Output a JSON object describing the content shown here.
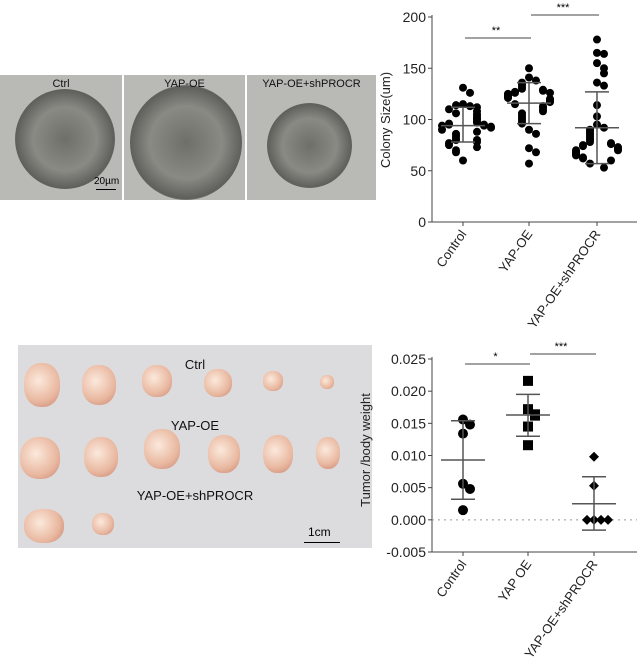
{
  "photos_top": {
    "labels": [
      "Ctrl",
      "YAP-OE",
      "YAP-OE+shPROCR"
    ],
    "scale_bar": "20µm"
  },
  "photos_bottom": {
    "labels": [
      "Ctrl",
      "YAP-OE",
      "YAP-OE+shPROCR"
    ],
    "scale_bar": "1cm"
  },
  "chart_data": [
    {
      "type": "scatter",
      "ylabel": "Colony Size(um)",
      "categories": [
        "Control",
        "YAP-OE",
        "YAP-OE+shPROCR"
      ],
      "ylim": [
        0,
        200
      ],
      "yticks": [
        0,
        50,
        100,
        150,
        200
      ],
      "series": [
        {
          "values": [
            131,
            126,
            115,
            113,
            114,
            112,
            110,
            108,
            106,
            105,
            103,
            101,
            100,
            98,
            97,
            96,
            95,
            95,
            94,
            94,
            93,
            92,
            90,
            88,
            86,
            84,
            82,
            80,
            80,
            78,
            77,
            75,
            73,
            70,
            68,
            60
          ],
          "mean": 94,
          "sd_low": 78,
          "sd_high": 112
        },
        {
          "values": [
            150,
            141,
            138,
            136,
            134,
            132,
            130,
            129,
            128,
            127,
            126,
            126,
            125,
            124,
            123,
            122,
            121,
            120,
            119,
            118,
            117,
            115,
            113,
            112,
            110,
            108,
            106,
            104,
            102,
            100,
            98,
            96,
            90,
            86,
            72,
            68,
            57
          ],
          "mean": 116,
          "sd_low": 96,
          "sd_high": 136
        },
        {
          "values": [
            178,
            165,
            164,
            155,
            150,
            145,
            136,
            133,
            114,
            103,
            95,
            92,
            90,
            88,
            86,
            84,
            82,
            80,
            78,
            77,
            76,
            75,
            74,
            73,
            72,
            71,
            70,
            70,
            69,
            68,
            67,
            66,
            65,
            63,
            62,
            60,
            57,
            53
          ],
          "mean": 92,
          "sd_low": 57,
          "sd_high": 127
        }
      ],
      "significance": [
        {
          "from": 0,
          "to": 1,
          "label": "**"
        },
        {
          "from": 1,
          "to": 2,
          "label": "***"
        }
      ]
    },
    {
      "type": "scatter",
      "ylabel": "Tumor /body  weight",
      "categories": [
        "Control",
        "YAP OE",
        "YAP-OE+shPROCR"
      ],
      "ylim": [
        -0.005,
        0.025
      ],
      "yticks": [
        "-0.005",
        "0.000",
        "0.005",
        "0.010",
        "0.015",
        "0.020",
        "0.025"
      ],
      "reference_line": 0,
      "series": [
        {
          "marker": "circle",
          "values": [
            0.0156,
            0.0148,
            0.0134,
            0.0056,
            0.0048,
            0.0015
          ],
          "mean": 0.0093,
          "sd_low": 0.0032,
          "sd_high": 0.0154
        },
        {
          "marker": "square",
          "values": [
            0.0216,
            0.0172,
            0.0164,
            0.0162,
            0.0145,
            0.0116
          ],
          "mean": 0.0163,
          "sd_low": 0.013,
          "sd_high": 0.0195
        },
        {
          "marker": "diamond",
          "values": [
            0.0098,
            0.0053,
            0,
            0,
            0,
            0
          ],
          "mean": 0.0025,
          "sd_low": -0.0016,
          "sd_high": 0.0067
        }
      ],
      "significance": [
        {
          "from": 0,
          "to": 1,
          "label": "*"
        },
        {
          "from": 1,
          "to": 2,
          "label": "***"
        }
      ]
    }
  ]
}
